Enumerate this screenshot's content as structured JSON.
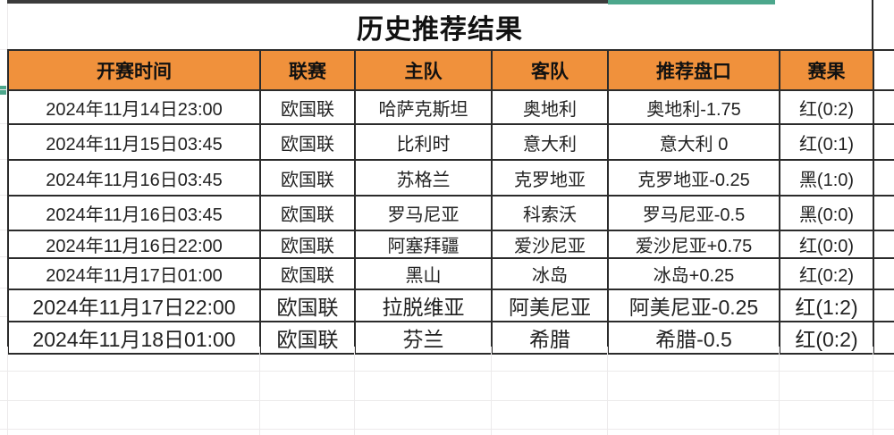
{
  "title": "历史推荐结果",
  "columns": [
    {
      "label": "开赛时间"
    },
    {
      "label": "联赛"
    },
    {
      "label": "主队"
    },
    {
      "label": "客队"
    },
    {
      "label": "推荐盘口"
    },
    {
      "label": "赛果"
    }
  ],
  "rows": [
    {
      "time": "2024年11月14日23:00",
      "league": "欧国联",
      "home": "哈萨克斯坦",
      "away": "奥地利",
      "handicap": "奥地利-1.75",
      "result": "红(0:2)",
      "result_color": "red"
    },
    {
      "time": "2024年11月15日03:45",
      "league": "欧国联",
      "home": "比利时",
      "away": "意大利",
      "handicap": "意大利 0",
      "result": "红(0:1)",
      "result_color": "red"
    },
    {
      "time": "2024年11月16日03:45",
      "league": "欧国联",
      "home": "苏格兰",
      "away": "克罗地亚",
      "handicap": "克罗地亚-0.25",
      "result": "黑(1:0)",
      "result_color": "black"
    },
    {
      "time": "2024年11月16日03:45",
      "league": "欧国联",
      "home": "罗马尼亚",
      "away": "科索沃",
      "handicap": "罗马尼亚-0.5",
      "result": "黑(0:0)",
      "result_color": "black"
    },
    {
      "time": "2024年11月16日22:00",
      "league": "欧国联",
      "home": "阿塞拜疆",
      "away": "爱沙尼亚",
      "handicap": "爱沙尼亚+0.75",
      "result": "红(0:0)",
      "result_color": "red"
    },
    {
      "time": "2024年11月17日01:00",
      "league": "欧国联",
      "home": "黑山",
      "away": "冰岛",
      "handicap": "冰岛+0.25",
      "result": "红(0:2)",
      "result_color": "red"
    },
    {
      "time": "2024年11月17日22:00",
      "league": "欧国联",
      "home": "拉脱维亚",
      "away": "阿美尼亚",
      "handicap": "阿美尼亚-0.25",
      "result": "红(1:2)",
      "result_color": "red"
    },
    {
      "time": "2024年11月18日01:00",
      "league": "欧国联",
      "home": "芬兰",
      "away": "希腊",
      "handicap": "希腊-0.5",
      "result": "红(0:2)",
      "result_color": "red"
    }
  ],
  "colors": {
    "header_bg": "#F0913C",
    "result_red": "#B0362E",
    "result_black": "#1F1F1F",
    "accent_teal": "#4CA78C"
  }
}
